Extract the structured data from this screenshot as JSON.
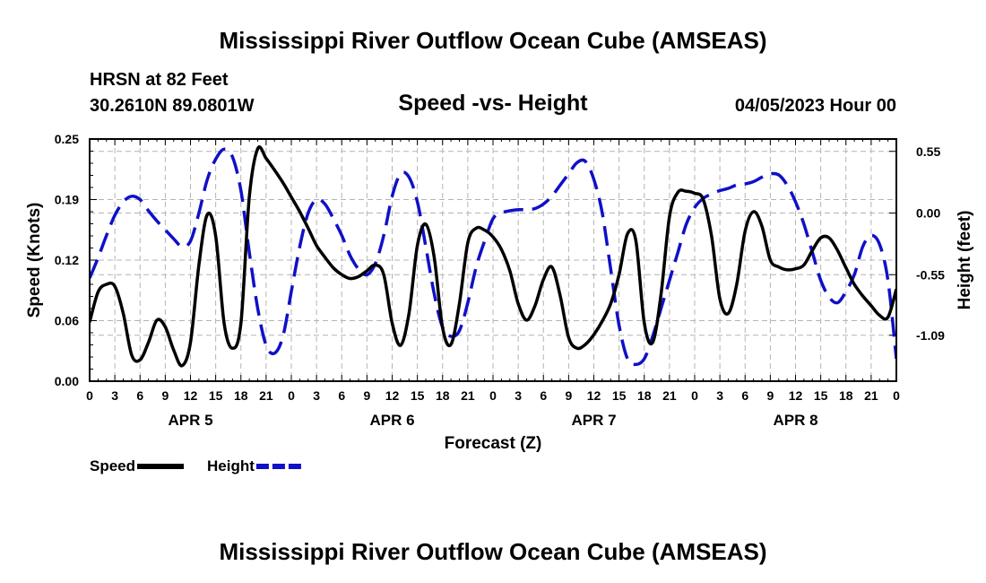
{
  "header": {
    "title": "Mississippi River Outflow Ocean Cube (AMSEAS)",
    "station": "HRSN at 82 Feet",
    "coords": "30.2610N  89.0801W",
    "subtitle": "Speed -vs- Height",
    "datetime": "04/05/2023 Hour 00"
  },
  "footer": {
    "title": "Mississippi River Outflow Ocean Cube (AMSEAS)"
  },
  "colors": {
    "speed": "#000000",
    "height": "#1010c8",
    "grid": "#b4b4b4"
  },
  "chart_data": {
    "type": "line",
    "title": "Speed -vs- Height",
    "xlabel": "Forecast (Z)",
    "ylabel": "Speed (Knots)",
    "y2label": "Height (feet)",
    "x_range_hours": [
      0,
      96
    ],
    "x_tick_labels": [
      "0",
      "3",
      "6",
      "9",
      "12",
      "15",
      "18",
      "21",
      "0",
      "3",
      "6",
      "9",
      "12",
      "15",
      "18",
      "21",
      "0",
      "3",
      "6",
      "9",
      "12",
      "15",
      "18",
      "21",
      "0",
      "3",
      "6",
      "9",
      "12",
      "15",
      "18",
      "21",
      "0"
    ],
    "day_labels": [
      {
        "label": "APR 5",
        "hour": 12
      },
      {
        "label": "APR 6",
        "hour": 36
      },
      {
        "label": "APR 7",
        "hour": 60
      },
      {
        "label": "APR 8",
        "hour": 84
      }
    ],
    "ylim": [
      0,
      0.25
    ],
    "y_ticks": [
      {
        "value": 0,
        "label": "0.00"
      },
      {
        "value": 0.0625,
        "label": "0.06"
      },
      {
        "value": 0.125,
        "label": "0.12"
      },
      {
        "value": 0.1875,
        "label": "0.19"
      },
      {
        "value": 0.25,
        "label": "0.25"
      }
    ],
    "y2lim": [
      -1.5,
      0.66
    ],
    "y2_ticks": [
      {
        "value": 0.55,
        "label": "0.55"
      },
      {
        "value": 0.0,
        "label": "0.00"
      },
      {
        "value": -0.55,
        "label": "-0.55"
      },
      {
        "value": -1.09,
        "label": "-1.09"
      }
    ],
    "legend": [
      {
        "label": "Speed",
        "series": "speed"
      },
      {
        "label": "Height",
        "series": "height"
      }
    ],
    "series": [
      {
        "name": "Speed",
        "key": "speed",
        "axis": "left",
        "style": "solid",
        "x": [
          0,
          1,
          2,
          3,
          4,
          5,
          6,
          7,
          8,
          9,
          10,
          11,
          12,
          13,
          14,
          15,
          16,
          17,
          18,
          19,
          20,
          21,
          22,
          23,
          24,
          25,
          26,
          27,
          28,
          29,
          30,
          31,
          32,
          33,
          34,
          35,
          36,
          37,
          38,
          39,
          40,
          41,
          42,
          43,
          44,
          45,
          46,
          47,
          48,
          49,
          50,
          51,
          52,
          53,
          54,
          55,
          56,
          57,
          58,
          59,
          60,
          61,
          62,
          63,
          64,
          65,
          66,
          67,
          68,
          69,
          70,
          71,
          72,
          73,
          74,
          75,
          76,
          77,
          78,
          79,
          80,
          81,
          82,
          83,
          84,
          85,
          86,
          87,
          88,
          89,
          90,
          91,
          92,
          93,
          94,
          95,
          96
        ],
        "values": [
          0.061,
          0.092,
          0.1,
          0.098,
          0.07,
          0.027,
          0.022,
          0.04,
          0.063,
          0.056,
          0.032,
          0.016,
          0.04,
          0.12,
          0.172,
          0.15,
          0.06,
          0.034,
          0.06,
          0.19,
          0.24,
          0.23,
          0.218,
          0.205,
          0.19,
          0.175,
          0.158,
          0.14,
          0.128,
          0.117,
          0.11,
          0.106,
          0.108,
          0.114,
          0.12,
          0.11,
          0.06,
          0.037,
          0.07,
          0.14,
          0.162,
          0.128,
          0.055,
          0.038,
          0.08,
          0.143,
          0.158,
          0.156,
          0.149,
          0.136,
          0.114,
          0.08,
          0.063,
          0.078,
          0.105,
          0.118,
          0.088,
          0.045,
          0.034,
          0.038,
          0.048,
          0.062,
          0.08,
          0.11,
          0.152,
          0.145,
          0.06,
          0.04,
          0.09,
          0.17,
          0.195,
          0.196,
          0.194,
          0.188,
          0.15,
          0.085,
          0.07,
          0.1,
          0.155,
          0.175,
          0.16,
          0.125,
          0.118,
          0.115,
          0.116,
          0.12,
          0.135,
          0.148,
          0.148,
          0.135,
          0.117,
          0.1,
          0.088,
          0.078,
          0.068,
          0.066,
          0.095
        ]
      },
      {
        "name": "Height",
        "key": "height",
        "axis": "right",
        "style": "dashed",
        "x": [
          0,
          1,
          2,
          3,
          4,
          5,
          6,
          7,
          8,
          9,
          10,
          11,
          12,
          13,
          14,
          15,
          16,
          17,
          18,
          19,
          20,
          21,
          22,
          23,
          24,
          25,
          26,
          27,
          28,
          29,
          30,
          31,
          32,
          33,
          34,
          35,
          36,
          37,
          38,
          39,
          40,
          41,
          42,
          43,
          44,
          45,
          46,
          47,
          48,
          49,
          50,
          51,
          52,
          53,
          54,
          55,
          56,
          57,
          58,
          59,
          60,
          61,
          62,
          63,
          64,
          65,
          66,
          67,
          68,
          69,
          70,
          71,
          72,
          73,
          74,
          75,
          76,
          77,
          78,
          79,
          80,
          81,
          82,
          83,
          84,
          85,
          86,
          87,
          88,
          89,
          90,
          91,
          92,
          93,
          94,
          95,
          96
        ],
        "values": [
          -0.58,
          -0.4,
          -0.2,
          -0.02,
          0.1,
          0.15,
          0.12,
          0.02,
          -0.07,
          -0.15,
          -0.23,
          -0.3,
          -0.25,
          0.0,
          0.3,
          0.48,
          0.57,
          0.5,
          0.2,
          -0.35,
          -0.85,
          -1.18,
          -1.25,
          -1.1,
          -0.7,
          -0.3,
          0.0,
          0.12,
          0.08,
          -0.05,
          -0.2,
          -0.38,
          -0.5,
          -0.55,
          -0.45,
          -0.2,
          0.15,
          0.35,
          0.32,
          0.1,
          -0.3,
          -0.72,
          -1.02,
          -1.1,
          -1.05,
          -0.8,
          -0.48,
          -0.25,
          -0.05,
          0.0,
          0.02,
          0.03,
          0.03,
          0.04,
          0.08,
          0.15,
          0.25,
          0.35,
          0.45,
          0.46,
          0.3,
          0.0,
          -0.5,
          -1.0,
          -1.3,
          -1.35,
          -1.3,
          -1.1,
          -0.85,
          -0.6,
          -0.35,
          -0.1,
          0.05,
          0.13,
          0.17,
          0.2,
          0.22,
          0.25,
          0.26,
          0.28,
          0.32,
          0.35,
          0.34,
          0.25,
          0.1,
          -0.1,
          -0.35,
          -0.6,
          -0.75,
          -0.8,
          -0.7,
          -0.55,
          -0.3,
          -0.2,
          -0.28,
          -0.6,
          -1.3
        ]
      }
    ]
  }
}
